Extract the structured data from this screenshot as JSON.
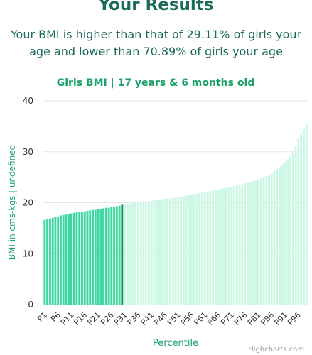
{
  "results": {
    "title": "Your Results",
    "summary": "Your BMI is higher than that of 29.11% of girls your age and lower than 70.89% of girls your age"
  },
  "credits": "Highcharts.com",
  "colors": {
    "below": "#3dd6a0",
    "above": "#ccf7e5",
    "current": "#0a9a5d",
    "text": "#1b6a5a",
    "axis_title": "#1aa06a"
  },
  "chart_data": {
    "type": "bar",
    "title": "Girls BMI | 17 years & 6 months old",
    "xlabel": "Percentile",
    "ylabel": "BMI in cms-kgs | undefined",
    "ylim": [
      0,
      40
    ],
    "yticks": [
      0,
      10,
      20,
      30,
      40
    ],
    "grid": true,
    "legend": "none",
    "current_percentile": "P30",
    "categories": [
      "P1",
      "P2",
      "P3",
      "P4",
      "P5",
      "P6",
      "P7",
      "P8",
      "P9",
      "P10",
      "P11",
      "P12",
      "P13",
      "P14",
      "P15",
      "P16",
      "P17",
      "P18",
      "P19",
      "P20",
      "P21",
      "P22",
      "P23",
      "P24",
      "P25",
      "P26",
      "P27",
      "P28",
      "P29",
      "P30",
      "P31",
      "P32",
      "P33",
      "P34",
      "P35",
      "P36",
      "P37",
      "P38",
      "P39",
      "P40",
      "P41",
      "P42",
      "P43",
      "P44",
      "P45",
      "P46",
      "P47",
      "P48",
      "P49",
      "P50",
      "P51",
      "P52",
      "P53",
      "P54",
      "P55",
      "P56",
      "P57",
      "P58",
      "P59",
      "P60",
      "P61",
      "P62",
      "P63",
      "P64",
      "P65",
      "P66",
      "P67",
      "P68",
      "P69",
      "P70",
      "P71",
      "P72",
      "P73",
      "P74",
      "P75",
      "P76",
      "P77",
      "P78",
      "P79",
      "P80",
      "P81",
      "P82",
      "P83",
      "P84",
      "P85",
      "P86",
      "P87",
      "P88",
      "P89",
      "P90",
      "P91",
      "P92",
      "P93",
      "P94",
      "P95",
      "P96",
      "P97",
      "P98",
      "P99"
    ],
    "values": [
      16.6,
      16.8,
      16.9,
      17.0,
      17.2,
      17.3,
      17.5,
      17.6,
      17.7,
      17.8,
      17.9,
      18.0,
      18.1,
      18.2,
      18.2,
      18.3,
      18.4,
      18.5,
      18.6,
      18.6,
      18.7,
      18.8,
      18.9,
      19.0,
      19.0,
      19.1,
      19.2,
      19.3,
      19.4,
      19.6,
      19.7,
      19.8,
      19.8,
      19.9,
      20.0,
      20.0,
      20.1,
      20.2,
      20.2,
      20.3,
      20.4,
      20.5,
      20.5,
      20.6,
      20.7,
      20.8,
      20.8,
      20.9,
      21.0,
      21.0,
      21.1,
      21.2,
      21.3,
      21.4,
      21.5,
      21.6,
      21.7,
      21.8,
      21.9,
      22.0,
      22.1,
      22.2,
      22.3,
      22.4,
      22.5,
      22.6,
      22.7,
      22.8,
      22.9,
      23.0,
      23.1,
      23.2,
      23.4,
      23.5,
      23.6,
      23.8,
      23.9,
      24.1,
      24.2,
      24.4,
      24.6,
      24.8,
      25.0,
      25.2,
      25.5,
      25.8,
      26.2,
      26.6,
      27.0,
      27.5,
      28.0,
      28.5,
      29.1,
      29.8,
      31.0,
      32.6,
      33.5,
      34.5,
      35.6
    ],
    "x_tick_labels": [
      "P1",
      "P6",
      "P11",
      "P16",
      "P21",
      "P26",
      "P31",
      "P36",
      "P41",
      "P46",
      "P51",
      "P56",
      "P61",
      "P66",
      "P71",
      "P76",
      "P81",
      "P86",
      "P91",
      "P96"
    ]
  }
}
